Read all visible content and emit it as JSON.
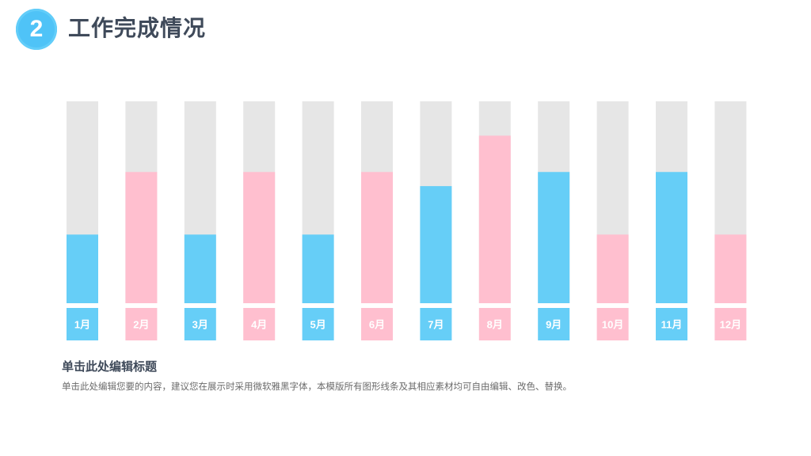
{
  "header": {
    "number": "2",
    "title": "工作完成情况"
  },
  "chart_data": {
    "type": "bar",
    "categories": [
      "1月",
      "2月",
      "3月",
      "4月",
      "5月",
      "6月",
      "7月",
      "8月",
      "9月",
      "10月",
      "11月",
      "12月"
    ],
    "values": [
      34,
      65,
      34,
      65,
      34,
      65,
      58,
      83,
      65,
      34,
      65,
      34
    ],
    "ylim": [
      0,
      100
    ],
    "colors": [
      "#66cef7",
      "#ffbfcf",
      "#66cef7",
      "#ffbfcf",
      "#66cef7",
      "#ffbfcf",
      "#66cef7",
      "#ffbfcf",
      "#66cef7",
      "#ffbfcf",
      "#66cef7",
      "#ffbfcf"
    ],
    "track_color": "#e6e6e6",
    "grid": false
  },
  "section": {
    "heading": "单击此处编辑标题",
    "body": "单击此处编辑您要的内容，建议您在展示时采用微软雅黑字体，本模版所有图形线条及其相应素材均可自由编辑、改色、替换。"
  }
}
